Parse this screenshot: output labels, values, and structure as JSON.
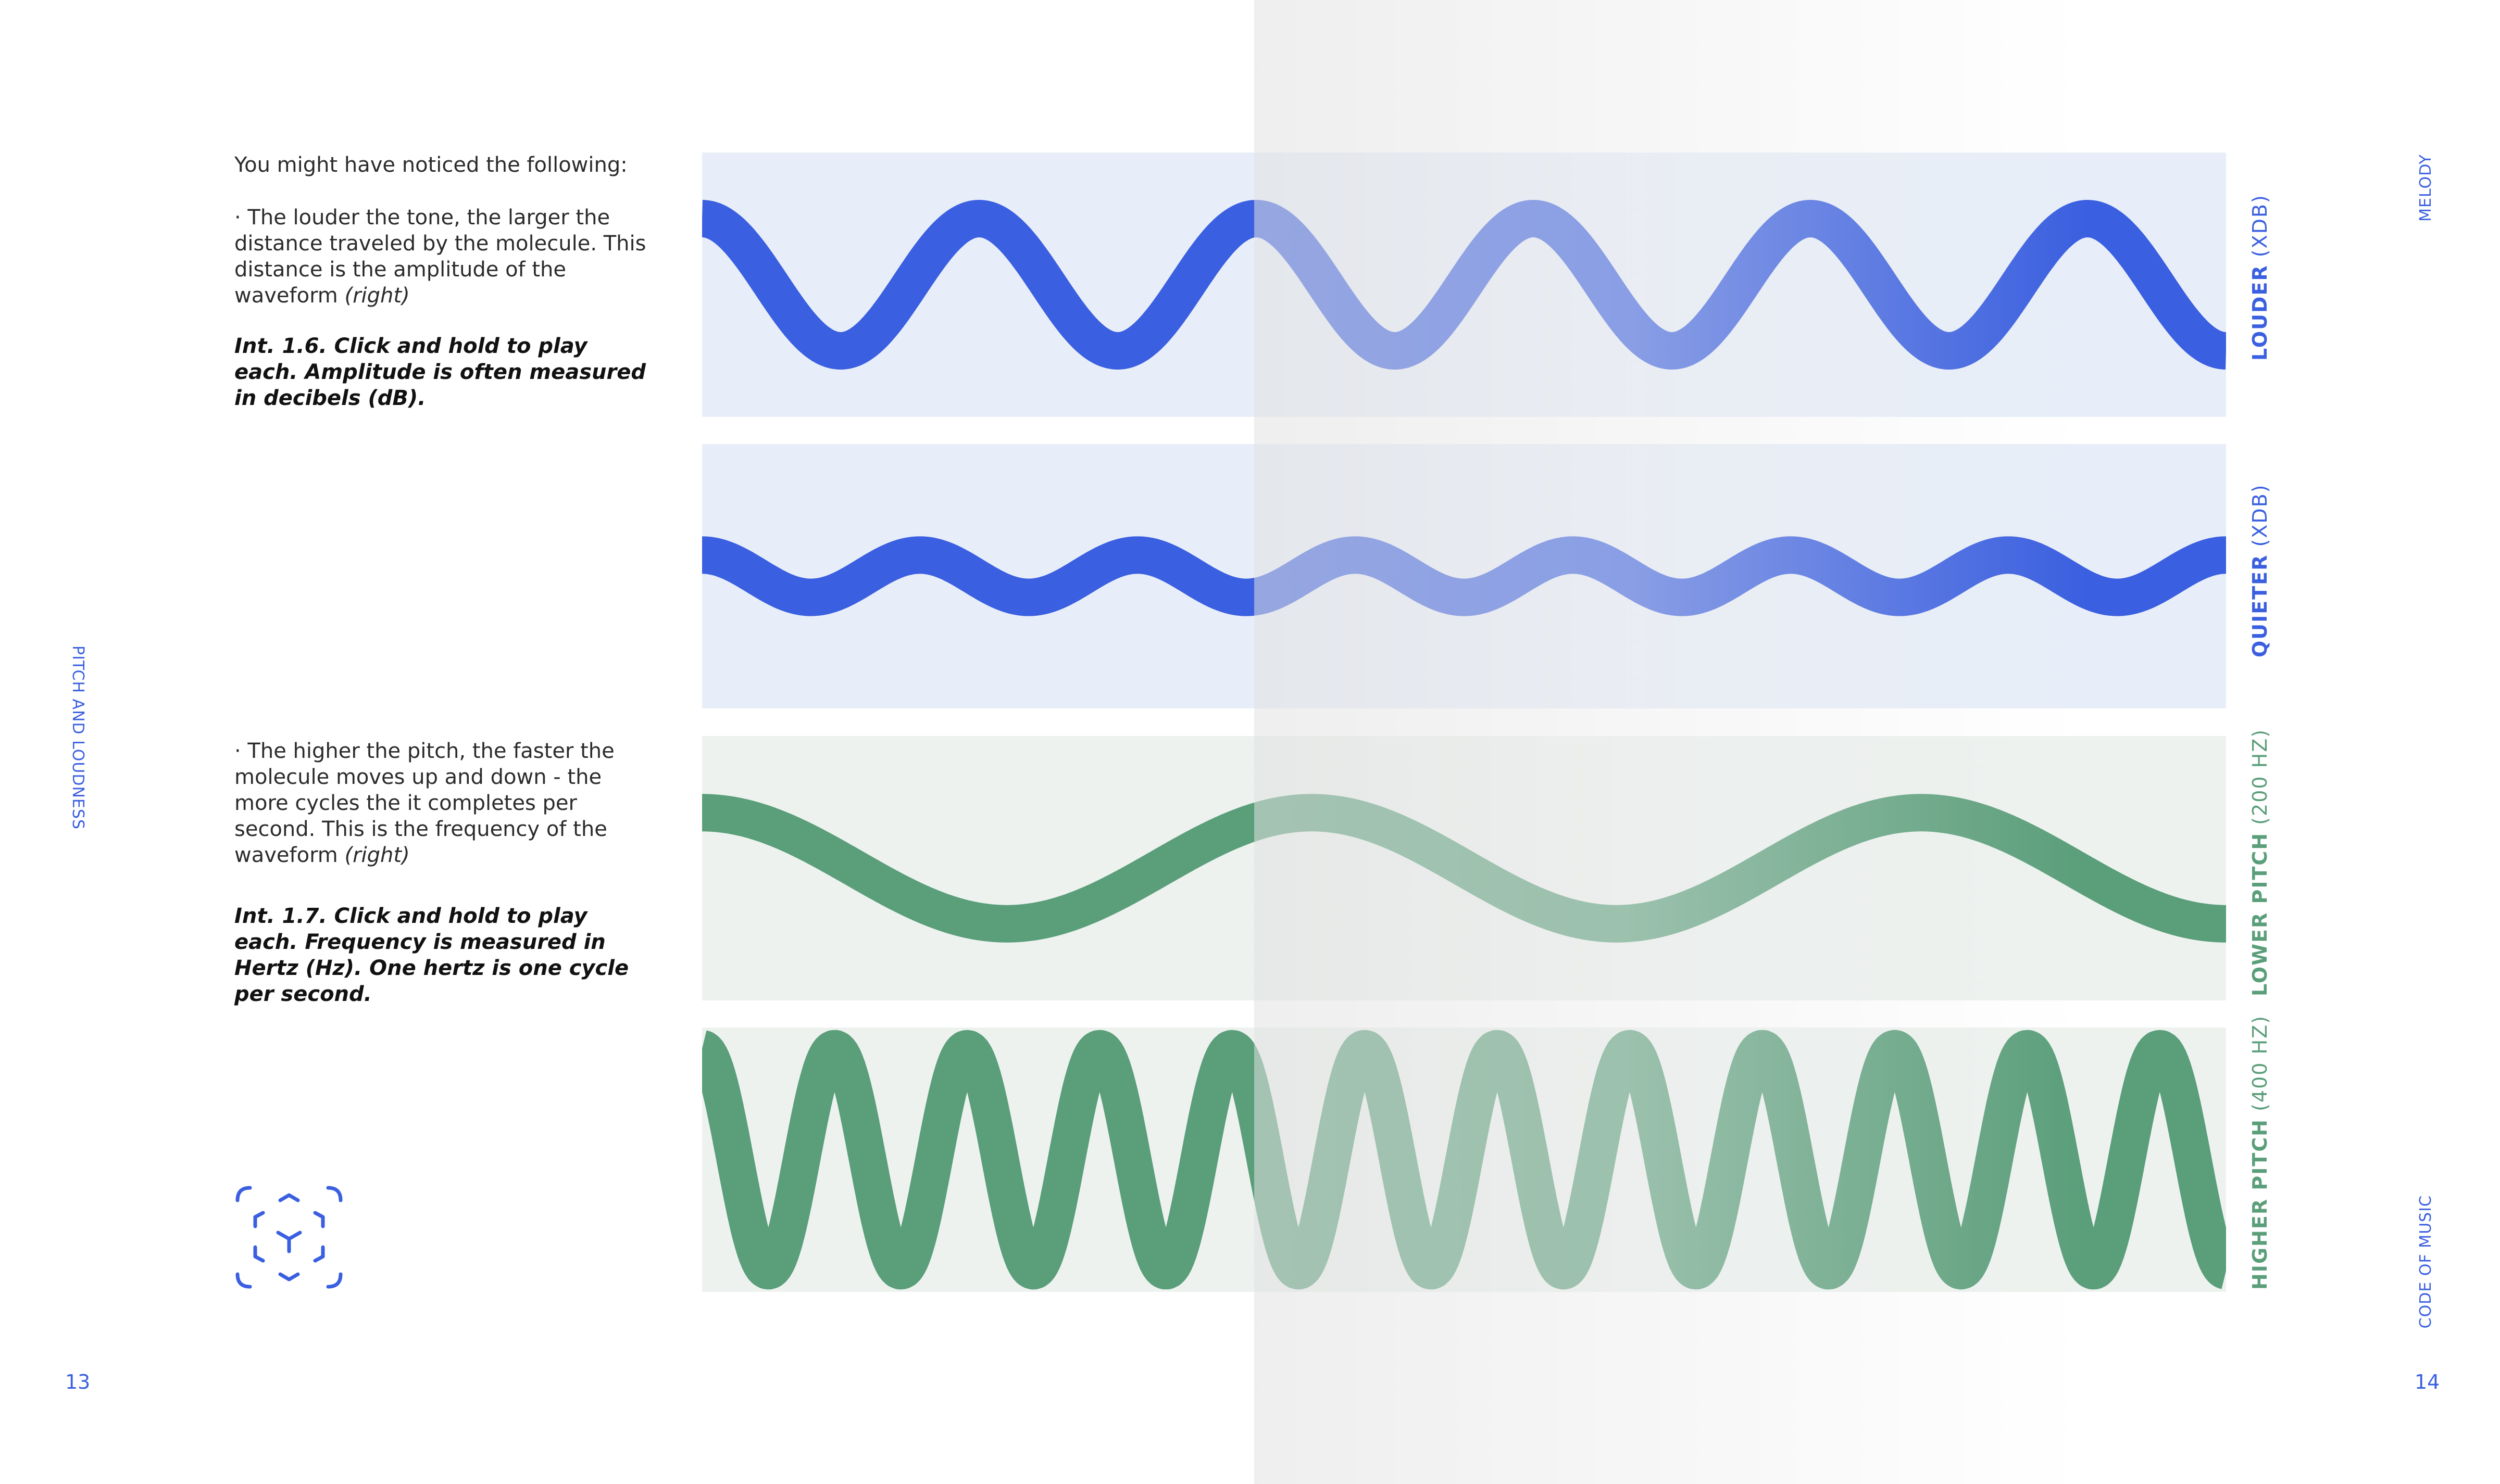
{
  "colors": {
    "blue_wave": "#3a5fe0",
    "blue_panel": "#e8eef9",
    "green_wave": "#5a9e7a",
    "green_panel": "#edf2ef",
    "accent_text": "#3a5fe0"
  },
  "left_page": {
    "intro": "You might have noticed the following:",
    "block1": "· The louder the tone, the larger the distance traveled by the molecule. This distance is the amplitude of the waveform",
    "block1_em": "(right)",
    "caption1_ref": "Int. 1.6.",
    "caption1_text": "Click and hold to play each. Amplitude is often measured in decibels (dB).",
    "block2": "· The higher the pitch, the faster the molecule moves up and down - the more cycles the it completes per second. This is the frequency of the waveform",
    "block2_em": "(right)",
    "caption2_ref": "Int. 1.7.",
    "caption2_text": "Click and hold to play each. Frequency is measured in Hertz (Hz). One hertz is one cycle per second.",
    "side_label": "PITCH AND LOUDNESS",
    "page_number": "13",
    "icon": "ar-cube-icon"
  },
  "right_page": {
    "side_label_top": "MELODY",
    "side_label_bottom": "CODE OF MUSIC",
    "page_number": "14"
  },
  "waves": [
    {
      "label_strong": "LOUDER",
      "label_rest": " (XDB)",
      "color": "blue",
      "cycles": 5.5,
      "amplitude": 0.25
    },
    {
      "label_strong": "QUIETER",
      "label_rest": " (XDB)",
      "color": "blue",
      "cycles": 7,
      "amplitude": 0.08
    },
    {
      "label_strong": "LOWER PITCH",
      "label_rest": " (200 HZ)",
      "color": "green",
      "cycles": 2.5,
      "amplitude": 0.21
    },
    {
      "label_strong": "HIGHER PITCH",
      "label_rest": " (400 HZ)",
      "color": "green",
      "cycles": 11.5,
      "amplitude": 0.42
    }
  ]
}
